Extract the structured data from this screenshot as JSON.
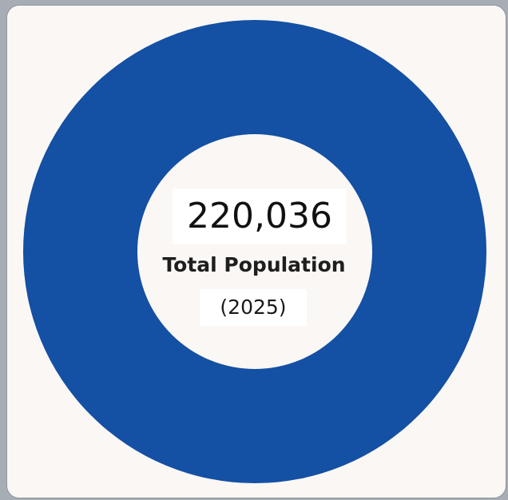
{
  "chart_data": {
    "type": "pie",
    "variant": "donut",
    "values": [
      220036
    ],
    "center_value": "220,036",
    "center_label": "Total Population",
    "center_sublabel": "(2025)"
  },
  "colors": {
    "ring": "#1450a3",
    "hole": "#faf7f4",
    "card_background": "#faf7f4",
    "page_background": "#a7adb4"
  }
}
